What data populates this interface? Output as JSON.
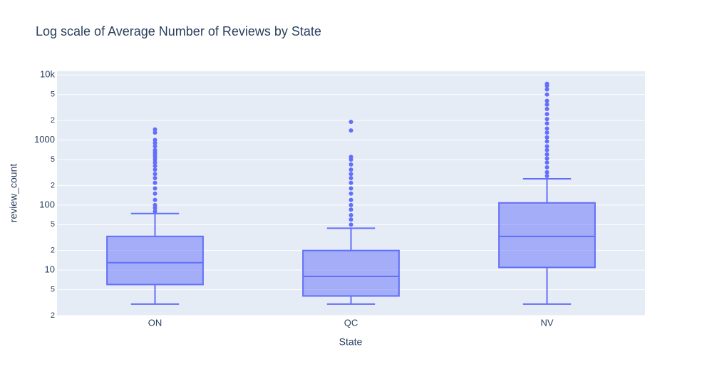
{
  "chart_data": {
    "type": "box",
    "title": "Log scale of Average Number of Reviews by State",
    "x_label": "State",
    "y_label": "review_count",
    "y_scale": "log",
    "grid": true,
    "color": "#636efa",
    "categories": [
      "ON",
      "QC",
      "NV"
    ],
    "boxes": [
      {
        "min": 3,
        "q1": 6,
        "median": 13,
        "q3": 33,
        "max": 74,
        "outliers": [
          80,
          90,
          100,
          120,
          150,
          180,
          220,
          260,
          300,
          350,
          400,
          450,
          500,
          550,
          600,
          650,
          700,
          800,
          900,
          1000,
          1300,
          1450
        ]
      },
      {
        "min": 3,
        "q1": 4,
        "median": 8,
        "q3": 20,
        "max": 44,
        "outliers": [
          50,
          60,
          70,
          85,
          100,
          120,
          150,
          180,
          220,
          260,
          300,
          350,
          420,
          500,
          550,
          1400,
          1900
        ]
      },
      {
        "min": 3,
        "q1": 11,
        "median": 33,
        "q3": 108,
        "max": 253,
        "outliers": [
          280,
          320,
          380,
          450,
          520,
          600,
          700,
          800,
          950,
          1100,
          1300,
          1500,
          1800,
          2100,
          2500,
          3000,
          3500,
          4000,
          5000,
          6000,
          6800,
          7300
        ]
      }
    ],
    "ylim": [
      2,
      11400
    ],
    "yticks": [
      2,
      5,
      10,
      {
        "value": 20,
        "label": "2"
      },
      {
        "value": 50,
        "label": "5"
      },
      100,
      {
        "value": 200,
        "label": "2"
      },
      {
        "value": 500,
        "label": "5"
      },
      1000,
      {
        "value": 2000,
        "label": "2"
      },
      {
        "value": 5000,
        "label": "5"
      },
      {
        "value": 10000,
        "label": "10k"
      }
    ]
  }
}
